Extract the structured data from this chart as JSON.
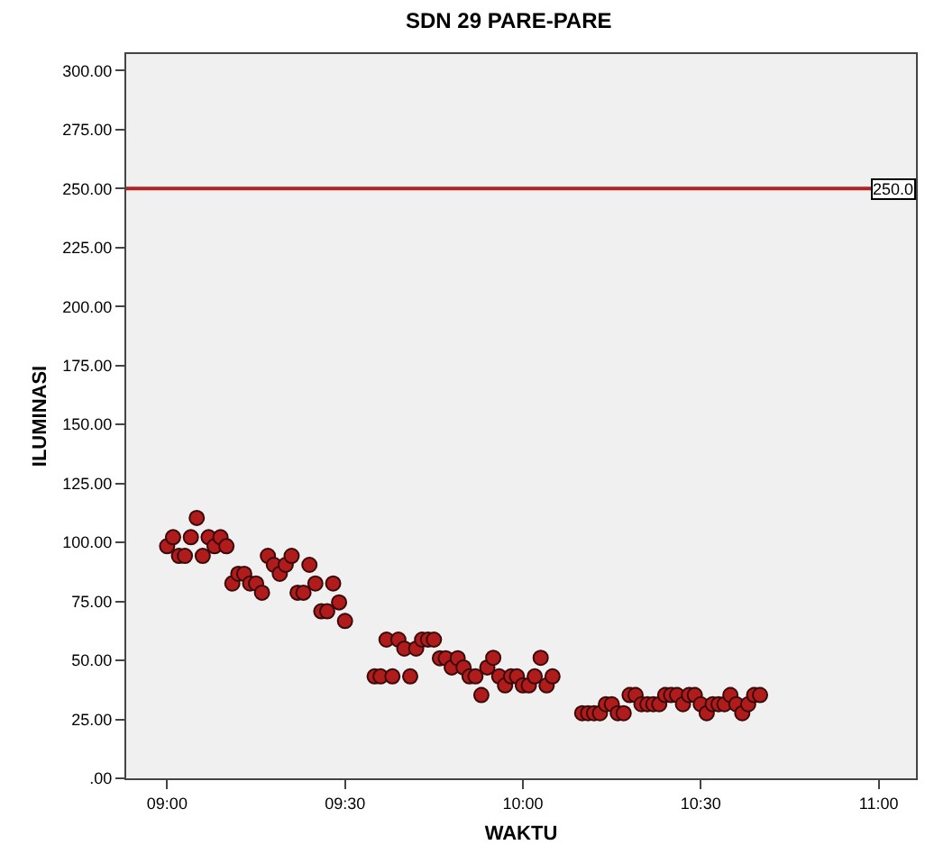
{
  "chart_data": {
    "type": "scatter",
    "title": "SDN 29 PARE-PARE",
    "xlabel": "WAKTU",
    "ylabel": "ILUMINASI",
    "x": [
      9.0,
      9.0167,
      9.0333,
      9.05,
      9.0667,
      9.0833,
      9.1,
      9.1167,
      9.1333,
      9.15,
      9.1667,
      9.1833,
      9.2,
      9.2167,
      9.2333,
      9.25,
      9.2667,
      9.2833,
      9.3,
      9.3167,
      9.3333,
      9.35,
      9.3667,
      9.3833,
      9.4,
      9.4167,
      9.4333,
      9.45,
      9.4667,
      9.4833,
      9.5,
      9.5833,
      9.6,
      9.6167,
      9.6333,
      9.65,
      9.6667,
      9.6833,
      9.7,
      9.7167,
      9.7333,
      9.75,
      9.7667,
      9.7833,
      9.8,
      9.8167,
      9.8333,
      9.85,
      9.8667,
      9.8833,
      9.9,
      9.9167,
      9.9333,
      9.95,
      9.9667,
      9.9833,
      10.0,
      10.0167,
      10.0333,
      10.05,
      10.0667,
      10.0833,
      10.1667,
      10.1833,
      10.2,
      10.2167,
      10.2333,
      10.25,
      10.2667,
      10.2833,
      10.3,
      10.3167,
      10.3333,
      10.35,
      10.3667,
      10.3833,
      10.4,
      10.4167,
      10.4333,
      10.45,
      10.4667,
      10.4833,
      10.5,
      10.5167,
      10.5333,
      10.55,
      10.5667,
      10.5833,
      10.6,
      10.6167,
      10.6333,
      10.65,
      10.6667
    ],
    "series": [
      {
        "color": "#b01c1c",
        "values": [
          98.4,
          102.2,
          94.3,
          94.3,
          102.2,
          110.4,
          94.3,
          102.2,
          98.4,
          102.2,
          98.4,
          82.6,
          86.7,
          86.7,
          82.6,
          82.6,
          78.7,
          94.3,
          90.5,
          86.7,
          90.5,
          94.3,
          78.7,
          78.7,
          90.5,
          82.6,
          70.8,
          70.8,
          82.6,
          74.6,
          66.7,
          43.2,
          43.2,
          58.8,
          43.2,
          58.8,
          55.0,
          43.2,
          55.0,
          58.8,
          58.8,
          58.8,
          50.9,
          50.9,
          47.0,
          50.9,
          47.0,
          43.2,
          43.2,
          35.3,
          47.0,
          51.1,
          43.2,
          39.4,
          43.2,
          43.2,
          39.4,
          39.4,
          43.2,
          51.1,
          39.4,
          43.2,
          27.6,
          27.6,
          27.6,
          27.6,
          31.4,
          31.4,
          27.6,
          27.6,
          35.3,
          35.3,
          31.4,
          31.4,
          31.4,
          31.4,
          35.3,
          35.3,
          35.3,
          31.4,
          35.3,
          35.3,
          31.4,
          27.6,
          31.4,
          31.4,
          31.4,
          35.3,
          31.4,
          27.6,
          31.4,
          35.3,
          35.3
        ]
      }
    ],
    "marker": "circle",
    "grid": false,
    "xlim": [
      8.885,
      11.105
    ],
    "xticks": [
      {
        "value": 9,
        "label": "09:00"
      },
      {
        "value": 9.5,
        "label": "09:30"
      },
      {
        "value": 10,
        "label": "10:00"
      },
      {
        "value": 10.5,
        "label": "10:30"
      },
      {
        "value": 11,
        "label": "11:00"
      }
    ],
    "ylim": [
      0,
      307
    ],
    "yticks": [
      {
        "value": 0,
        "label": ".00"
      },
      {
        "value": 25,
        "label": "25.00"
      },
      {
        "value": 50,
        "label": "50.00"
      },
      {
        "value": 75,
        "label": "75.00"
      },
      {
        "value": 100,
        "label": "100.00"
      },
      {
        "value": 125,
        "label": "125.00"
      },
      {
        "value": 150,
        "label": "150.00"
      },
      {
        "value": 175,
        "label": "175.00"
      },
      {
        "value": 200,
        "label": "200.00"
      },
      {
        "value": 225,
        "label": "225.00"
      },
      {
        "value": 250,
        "label": "250.00"
      },
      {
        "value": 275,
        "label": "275.00"
      },
      {
        "value": 300,
        "label": "300.00"
      }
    ],
    "ref_lines": [
      {
        "axis": "y",
        "value": 250,
        "label": "250.0",
        "color": "#b22222"
      }
    ]
  }
}
